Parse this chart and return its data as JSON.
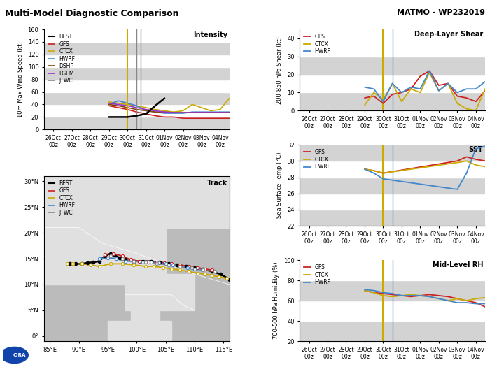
{
  "title_left": "Multi-Model Diagnostic Comparison",
  "title_right": "MATMO - WP232019",
  "x_labels": [
    "26Oct\n00z",
    "27Oct\n00z",
    "28Oct\n00z",
    "29Oct\n00z",
    "30Oct\n00z",
    "31Oct\n00z",
    "01Nov\n00z",
    "02Nov\n00z",
    "03Nov\n00z",
    "04Nov\n00z"
  ],
  "intensity": {
    "ylabel": "10m Max Wind Speed (kt)",
    "ylim": [
      0,
      160
    ],
    "yticks": [
      0,
      20,
      40,
      60,
      80,
      100,
      120,
      140,
      160
    ],
    "label": "Intensity",
    "BEST": [
      null,
      null,
      null,
      null,
      null,
      null,
      20,
      20,
      20,
      22,
      25,
      38,
      50,
      null,
      null,
      null,
      null,
      null,
      null,
      null
    ],
    "GFS": [
      null,
      null,
      null,
      null,
      null,
      null,
      38,
      35,
      32,
      28,
      25,
      22,
      20,
      20,
      18,
      18,
      18,
      18,
      18,
      18
    ],
    "CTCX": [
      null,
      null,
      null,
      null,
      null,
      null,
      44,
      42,
      40,
      38,
      35,
      32,
      30,
      28,
      30,
      40,
      35,
      30,
      32,
      50
    ],
    "HWRF": [
      null,
      null,
      null,
      null,
      null,
      null,
      40,
      46,
      42,
      38,
      30,
      28,
      26,
      26,
      26,
      28,
      28,
      28,
      28,
      28
    ],
    "DSHP": [
      null,
      null,
      null,
      null,
      null,
      null,
      40,
      38,
      35,
      32,
      30,
      28,
      28,
      27,
      27,
      27,
      27,
      27,
      27,
      27
    ],
    "LGEM": [
      null,
      null,
      null,
      null,
      null,
      null,
      42,
      40,
      38,
      35,
      32,
      30,
      28,
      27,
      27,
      27,
      27,
      27,
      27,
      27
    ],
    "JTWC": [
      null,
      null,
      null,
      null,
      null,
      null,
      50,
      null,
      null,
      null,
      null,
      null,
      null,
      null,
      null,
      null,
      null,
      null,
      null,
      null
    ],
    "vline_yellow": 6.0,
    "vline_gray1": 6.8,
    "vline_gray2": 7.2
  },
  "shear": {
    "ylabel": "200-850 hPa Shear (kt)",
    "ylim": [
      0,
      45
    ],
    "yticks": [
      0,
      10,
      20,
      30,
      40
    ],
    "label": "Deep-Layer Shear",
    "GFS": [
      null,
      null,
      null,
      null,
      null,
      null,
      7,
      8,
      4,
      9,
      10,
      12,
      19,
      22,
      14,
      15,
      8,
      7,
      5,
      11
    ],
    "CTCX": [
      null,
      null,
      null,
      null,
      null,
      null,
      3,
      10,
      6,
      15,
      5,
      12,
      10,
      21,
      11,
      15,
      4,
      1,
      0,
      12
    ],
    "HWRF": [
      null,
      null,
      null,
      null,
      null,
      null,
      13,
      12,
      5,
      15,
      10,
      13,
      12,
      22,
      11,
      15,
      10,
      12,
      12,
      16
    ],
    "vline_yellow": 6.0,
    "vline_blue": 6.5
  },
  "sst": {
    "ylabel": "Sea Surface Temp (°C)",
    "ylim": [
      22,
      32
    ],
    "yticks": [
      22,
      24,
      26,
      28,
      30,
      32
    ],
    "label": "SST",
    "GFS": [
      null,
      null,
      null,
      null,
      null,
      null,
      29.0,
      28.8,
      28.5,
      null,
      null,
      null,
      null,
      null,
      null,
      null,
      30.0,
      30.5,
      30.2,
      30.0
    ],
    "CTCX": [
      null,
      null,
      null,
      null,
      null,
      null,
      29.0,
      28.8,
      28.5,
      null,
      null,
      null,
      null,
      null,
      null,
      null,
      29.8,
      30.0,
      29.5,
      29.3
    ],
    "HWRF": [
      null,
      null,
      null,
      null,
      null,
      null,
      29.0,
      28.5,
      27.8,
      null,
      null,
      null,
      null,
      null,
      null,
      null,
      26.5,
      28.5,
      31.5,
      31.8
    ],
    "vline_yellow": 6.0,
    "vline_blue": 6.5
  },
  "rh": {
    "ylabel": "700-500 hPa Humidity (%)",
    "ylim": [
      20,
      100
    ],
    "yticks": [
      20,
      40,
      60,
      80,
      100
    ],
    "label": "Mid-Level RH",
    "GFS": [
      null,
      null,
      null,
      null,
      null,
      null,
      70,
      68,
      67,
      66,
      65,
      64,
      65,
      66,
      65,
      64,
      62,
      60,
      58,
      54
    ],
    "CTCX": [
      null,
      null,
      null,
      null,
      null,
      null,
      70,
      68,
      65,
      64,
      65,
      66,
      65,
      64,
      62,
      60,
      62,
      60,
      62,
      63
    ],
    "HWRF": [
      null,
      null,
      null,
      null,
      null,
      null,
      71,
      70,
      68,
      67,
      65,
      65,
      65,
      64,
      62,
      60,
      58,
      58,
      57,
      57
    ],
    "vline_yellow": 6.0,
    "vline_blue": 6.5
  },
  "track": {
    "xlim": [
      84,
      116
    ],
    "ylim": [
      -1,
      31
    ],
    "xticks": [
      85,
      90,
      95,
      100,
      105,
      110,
      115
    ],
    "yticks": [
      0,
      5,
      10,
      15,
      20,
      25,
      30
    ],
    "xlabel_labels": [
      "85°E",
      "90°E",
      "95°E",
      "100°E",
      "105°E",
      "110°E",
      "115°E"
    ],
    "ylabel_labels": [
      "0°",
      "5°N",
      "10°N",
      "15°N",
      "20°N",
      "25°N",
      "30°N"
    ],
    "label": "Track",
    "BEST_lon": [
      88.5,
      89.5,
      90.5,
      91.5,
      92.5,
      93.5,
      94.5,
      95.5,
      96.0,
      97.0,
      98.0,
      99.5,
      101.0,
      102.5,
      104.0,
      105.5,
      107.0,
      108.5,
      110.0,
      111.5,
      113.0,
      114.5,
      116.0
    ],
    "BEST_lat": [
      14.0,
      14.0,
      14.0,
      14.2,
      14.3,
      14.5,
      15.5,
      16.0,
      15.8,
      15.2,
      14.8,
      14.5,
      14.5,
      14.5,
      14.3,
      14.0,
      13.8,
      13.5,
      13.3,
      13.0,
      12.5,
      12.0,
      11.0
    ],
    "GFS_lon": [
      94.5,
      96.0,
      97.5,
      99.0,
      100.5,
      102.0,
      103.5,
      104.8,
      106.0,
      107.5,
      109.0,
      110.5,
      111.8,
      113.0
    ],
    "GFS_lat": [
      15.8,
      16.0,
      15.5,
      14.8,
      14.5,
      14.3,
      14.3,
      14.2,
      14.0,
      13.8,
      13.5,
      13.2,
      13.0,
      12.8
    ],
    "CTCX_lon": [
      88.0,
      89.0,
      90.5,
      92.0,
      93.5,
      95.5,
      97.5,
      99.5,
      101.5,
      103.0,
      104.5,
      106.0,
      107.5,
      109.0,
      110.5,
      111.8,
      113.0,
      114.2,
      115.5
    ],
    "CTCX_lat": [
      14.0,
      14.0,
      14.0,
      13.8,
      13.5,
      14.0,
      14.0,
      13.8,
      13.5,
      13.5,
      13.3,
      13.0,
      12.8,
      12.5,
      12.2,
      12.0,
      11.8,
      11.5,
      11.2
    ],
    "HWRF_lon": [
      93.5,
      95.0,
      96.5,
      98.0,
      99.5,
      101.0,
      102.5,
      103.8,
      105.0,
      106.3,
      107.5,
      108.8,
      110.0,
      111.3
    ],
    "HWRF_lat": [
      15.0,
      15.2,
      15.0,
      14.5,
      14.5,
      14.3,
      14.3,
      14.2,
      14.0,
      13.8,
      13.5,
      13.2,
      13.0,
      12.8
    ],
    "JTWC_lon": [
      95.5,
      97.5,
      99.5,
      101.5,
      103.5,
      105.5,
      107.5,
      109.5,
      111.5,
      113.5
    ],
    "JTWC_lat": [
      15.5,
      15.0,
      14.5,
      14.3,
      14.0,
      13.8,
      13.5,
      13.2,
      12.8,
      12.5
    ]
  },
  "colors": {
    "BEST": "#000000",
    "GFS": "#cc2222",
    "CTCX": "#ccaa00",
    "HWRF": "#4488cc",
    "DSHP": "#884400",
    "LGEM": "#9933cc",
    "JTWC": "#888888"
  },
  "bg_gray": "#d3d3d3",
  "bg_white": "#ffffff",
  "map_bg": "#bbbbbb",
  "land_color": "#e0e0e0",
  "land_patches": [
    [
      [
        84,
        116,
        116,
        84
      ],
      [
        21,
        21,
        31,
        31
      ]
    ],
    [
      [
        84,
        93,
        93,
        84
      ],
      [
        8,
        8,
        21,
        21
      ]
    ],
    [
      [
        93,
        105,
        105,
        93
      ],
      [
        14,
        14,
        21,
        21
      ]
    ],
    [
      [
        93,
        100,
        100,
        93
      ],
      [
        8,
        8,
        14,
        14
      ]
    ],
    [
      [
        105,
        116,
        116,
        105
      ],
      [
        10,
        10,
        21,
        21
      ]
    ],
    [
      [
        98,
        106,
        106,
        98
      ],
      [
        0,
        0,
        10,
        10
      ]
    ],
    [
      [
        106,
        112,
        112,
        106
      ],
      [
        0,
        0,
        8,
        8
      ]
    ],
    [
      [
        112,
        116,
        116,
        112
      ],
      [
        0,
        0,
        8,
        8
      ]
    ]
  ],
  "coast_lines": [
    [
      [
        84,
        84,
        90,
        93,
        93,
        90,
        87,
        85,
        84
      ],
      [
        10,
        15,
        15,
        18,
        21,
        21,
        18,
        12,
        10
      ]
    ],
    [
      [
        93,
        95,
        98,
        100,
        102,
        104,
        105,
        106,
        108,
        110,
        116
      ],
      [
        14,
        14.5,
        15,
        14.5,
        14,
        14,
        13,
        13,
        12,
        11,
        10
      ]
    ],
    [
      [
        98,
        100,
        102,
        104,
        106,
        108,
        110
      ],
      [
        0,
        2,
        4,
        5,
        5,
        4,
        3
      ]
    ],
    [
      [
        106,
        108,
        110,
        112,
        113
      ],
      [
        8,
        9,
        9,
        8,
        7
      ]
    ]
  ]
}
